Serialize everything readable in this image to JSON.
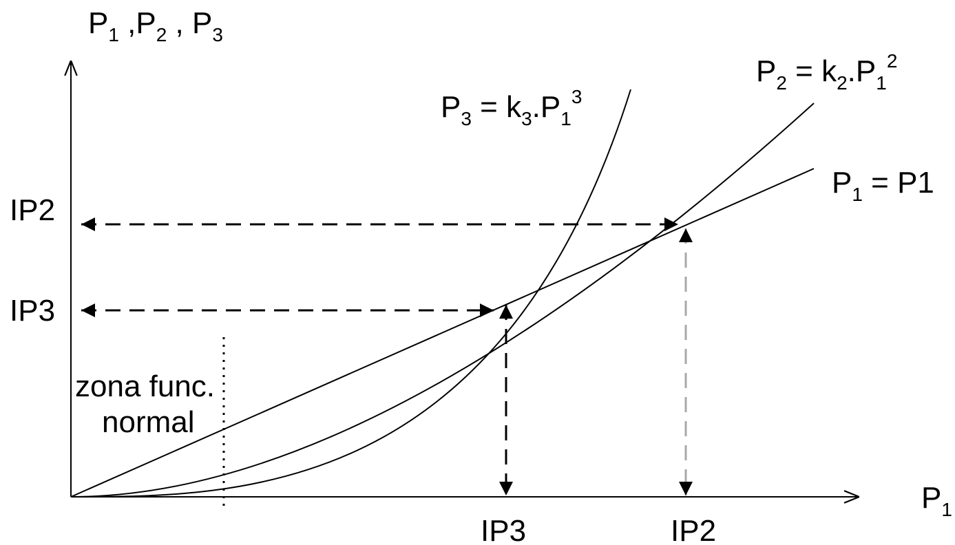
{
  "diagram": {
    "y_axis_label": {
      "p1": "P",
      "s1": "1",
      "sep1": " ,",
      "p2": "P",
      "s2": "2",
      "sep2": " , ",
      "p3": "P",
      "s3": "3"
    },
    "x_axis_label": {
      "p": "P",
      "s": "1"
    },
    "curve_p1_label": {
      "lhs": "P",
      "lhs_sub": "1",
      "rhs": " = P1"
    },
    "curve_p2_label": {
      "lhs": "P",
      "lhs_sub": "2",
      "eq": " = k",
      "k_sub": "2",
      "dot": ".P",
      "p_sub": "1",
      "exp": "2"
    },
    "curve_p3_label": {
      "lhs": "P",
      "lhs_sub": "3",
      "eq": " = k",
      "k_sub": "3",
      "dot": ".P",
      "p_sub": "1",
      "exp": "3"
    },
    "left_labels": {
      "ip2": "IP2",
      "ip3": "IP3"
    },
    "bottom_labels": {
      "ip3": "IP3",
      "ip2": "IP2"
    },
    "zone_label": {
      "line1": "zona func.",
      "line2": "normal"
    },
    "colors": {
      "ink": "#000000",
      "grey_arrow": "#a8a8a8",
      "background": "#ffffff"
    }
  }
}
